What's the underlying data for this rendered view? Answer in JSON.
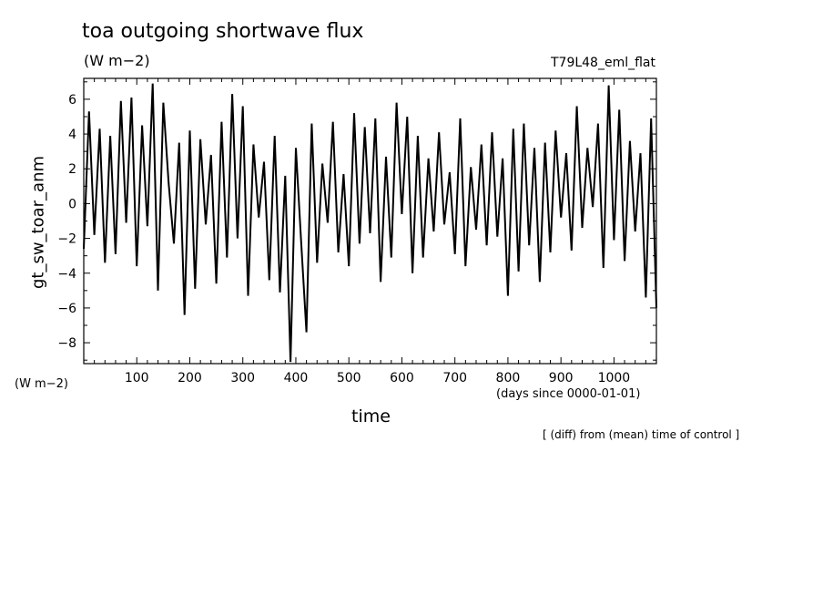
{
  "chart_data": {
    "type": "line",
    "title": "toa outgoing shortwave flux",
    "units": "(W m−2)",
    "run_label": "T79L48_eml_flat",
    "ylabel": "gt_sw_toar_anm",
    "yunits": "(W m−2)",
    "xlabel": "time",
    "xunits": "(days since 0000-01-01)",
    "note": "[ (diff) from (mean) time of control ]",
    "xlim": [
      0,
      1080
    ],
    "ylim": [
      -9.2,
      7.2
    ],
    "xticks": [
      100,
      200,
      300,
      400,
      500,
      600,
      700,
      800,
      900,
      1000
    ],
    "yticks": [
      -8,
      -6,
      -4,
      -2,
      0,
      2,
      4,
      6
    ],
    "grid": false,
    "series": [
      {
        "color": "#000000",
        "x": [
          0,
          10,
          20,
          30,
          40,
          50,
          60,
          70,
          80,
          90,
          100,
          110,
          120,
          130,
          140,
          150,
          160,
          170,
          180,
          190,
          200,
          210,
          220,
          230,
          240,
          250,
          260,
          270,
          280,
          290,
          300,
          310,
          320,
          330,
          340,
          350,
          360,
          370,
          380,
          390,
          400,
          410,
          420,
          430,
          440,
          450,
          460,
          470,
          480,
          490,
          500,
          510,
          520,
          530,
          540,
          550,
          560,
          570,
          580,
          590,
          600,
          610,
          620,
          630,
          640,
          650,
          660,
          670,
          680,
          690,
          700,
          710,
          720,
          730,
          740,
          750,
          760,
          770,
          780,
          790,
          800,
          810,
          820,
          830,
          840,
          850,
          860,
          870,
          880,
          890,
          900,
          910,
          920,
          930,
          940,
          950,
          960,
          970,
          980,
          990,
          1000,
          1010,
          1020,
          1030,
          1040,
          1050,
          1060,
          1070,
          1080
        ],
        "y": [
          -2.6,
          5.3,
          -1.8,
          4.3,
          -3.4,
          3.9,
          -2.9,
          5.9,
          -1.1,
          6.1,
          -3.6,
          4.5,
          -1.3,
          6.9,
          -5.0,
          5.8,
          1.2,
          -2.3,
          3.5,
          -6.4,
          4.2,
          -4.9,
          3.7,
          -1.2,
          2.8,
          -4.6,
          4.7,
          -3.1,
          6.3,
          -2.0,
          5.6,
          -5.3,
          3.4,
          -0.8,
          2.4,
          -4.4,
          3.9,
          -5.1,
          1.6,
          -9.1,
          3.2,
          -2.2,
          -7.4,
          4.6,
          -3.4,
          2.3,
          -1.1,
          4.7,
          -2.8,
          1.7,
          -3.6,
          5.2,
          -2.3,
          4.4,
          -1.7,
          4.9,
          -4.5,
          2.7,
          -3.1,
          5.8,
          -0.6,
          5.0,
          -4.0,
          3.9,
          -3.1,
          2.6,
          -1.6,
          4.1,
          -1.2,
          1.8,
          -2.9,
          4.9,
          -3.6,
          2.1,
          -1.5,
          3.4,
          -2.4,
          4.1,
          -1.9,
          2.6,
          -5.3,
          4.3,
          -3.9,
          4.6,
          -2.4,
          3.2,
          -4.5,
          3.5,
          -2.8,
          4.2,
          -0.8,
          2.9,
          -2.7,
          5.6,
          -1.4,
          3.2,
          -0.2,
          4.6,
          -3.7,
          6.8,
          -2.1,
          5.4,
          -3.3,
          3.6,
          -1.6,
          2.9,
          -5.4,
          4.9,
          -6.0
        ]
      }
    ]
  }
}
